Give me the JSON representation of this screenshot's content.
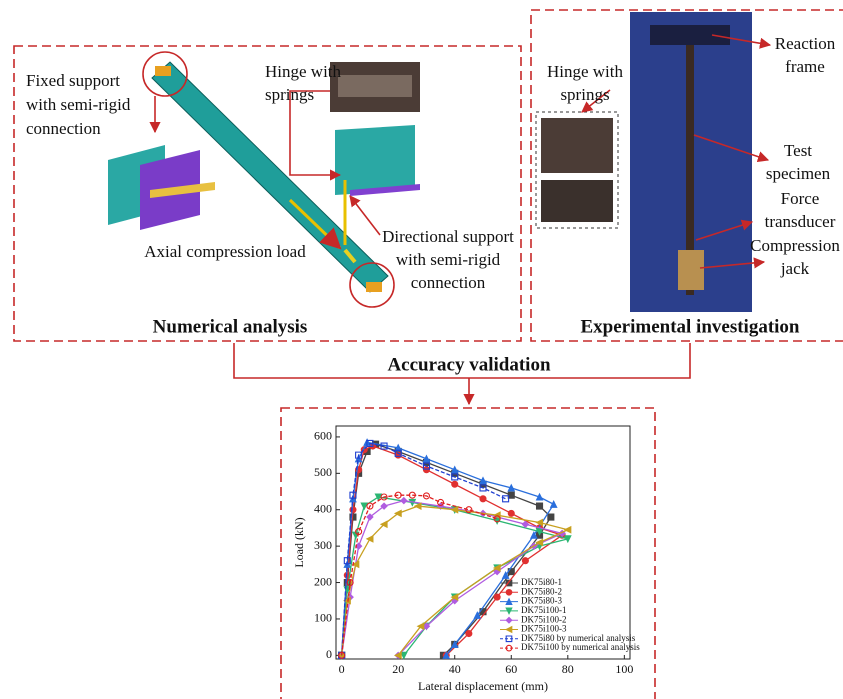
{
  "numerical": {
    "title": "Numerical analysis",
    "fixed_support": [
      "Fixed support",
      "with semi-rigid",
      "connection"
    ],
    "hinge": [
      "Hinge with",
      "springs"
    ],
    "load": "Axial compression load",
    "directional_support": [
      "Directional support",
      "with semi-rigid",
      "connection"
    ]
  },
  "experimental": {
    "title": "Experimental investigation",
    "hinge": [
      "Hinge with",
      "springs"
    ],
    "reaction": [
      "Reaction",
      "frame"
    ],
    "specimen": [
      "Test",
      "specimen"
    ],
    "transducer": [
      "Force",
      "transducer"
    ],
    "jack": [
      "Compression",
      "jack"
    ]
  },
  "validation": "Accuracy validation",
  "validation_chart": {
    "type": "line",
    "x_label": "Lateral displacement (mm)",
    "y_label": "Load (kN)",
    "xlim": [
      -2,
      102
    ],
    "ylim": [
      -10,
      630
    ],
    "xticks": [
      0,
      20,
      40,
      60,
      80,
      100
    ],
    "yticks": [
      0,
      100,
      200,
      300,
      400,
      500,
      600
    ],
    "series": [
      {
        "name": "DK75i80-1",
        "color": "#444444",
        "marker": "square",
        "filled": true,
        "x": [
          0,
          2,
          4,
          6,
          9,
          12,
          20,
          30,
          40,
          50,
          60,
          70,
          74,
          70,
          60,
          50,
          40,
          36
        ],
        "values": [
          0,
          200,
          380,
          500,
          560,
          580,
          560,
          530,
          500,
          470,
          440,
          410,
          380,
          330,
          230,
          120,
          30,
          0
        ]
      },
      {
        "name": "DK75i80-2",
        "color": "#e03030",
        "marker": "circle",
        "filled": true,
        "x": [
          0,
          2,
          4,
          6,
          8,
          11,
          20,
          30,
          40,
          50,
          60,
          70,
          78,
          65,
          55,
          45,
          37
        ],
        "values": [
          0,
          220,
          400,
          510,
          565,
          575,
          550,
          510,
          470,
          430,
          390,
          350,
          330,
          260,
          160,
          60,
          0
        ]
      },
      {
        "name": "DK75i80-3",
        "color": "#2a6fdc",
        "marker": "triangle",
        "filled": true,
        "x": [
          0,
          2,
          4,
          6,
          9,
          20,
          30,
          40,
          50,
          60,
          70,
          75,
          68,
          58,
          48,
          40,
          37
        ],
        "values": [
          0,
          250,
          430,
          540,
          585,
          570,
          540,
          510,
          480,
          460,
          435,
          415,
          330,
          220,
          110,
          30,
          0
        ]
      },
      {
        "name": "DK75i100-1",
        "color": "#2bb673",
        "marker": "triangle-down",
        "filled": true,
        "x": [
          0,
          2,
          5,
          8,
          13,
          25,
          40,
          55,
          70,
          80,
          70,
          55,
          40,
          30,
          22
        ],
        "values": [
          0,
          180,
          330,
          410,
          435,
          420,
          400,
          370,
          340,
          320,
          300,
          240,
          160,
          80,
          0
        ]
      },
      {
        "name": "DK75i100-2",
        "color": "#b05ce0",
        "marker": "diamond",
        "filled": true,
        "x": [
          0,
          3,
          6,
          10,
          15,
          22,
          35,
          50,
          65,
          78,
          68,
          55,
          40,
          30,
          20
        ],
        "values": [
          0,
          160,
          300,
          380,
          410,
          425,
          410,
          390,
          360,
          335,
          300,
          230,
          150,
          80,
          0
        ]
      },
      {
        "name": "DK75i100-3",
        "color": "#c8a020",
        "marker": "triangle-left",
        "filled": true,
        "x": [
          0,
          2,
          5,
          10,
          15,
          20,
          27,
          40,
          55,
          70,
          80,
          70,
          55,
          40,
          28,
          20
        ],
        "values": [
          0,
          150,
          250,
          320,
          360,
          390,
          410,
          400,
          385,
          365,
          345,
          310,
          240,
          160,
          80,
          0
        ]
      },
      {
        "name": "DK75i80 by numerical analysis",
        "color": "#1f3fd0",
        "marker": "square",
        "filled": false,
        "x": [
          0,
          2,
          4,
          6,
          10,
          15,
          20,
          30,
          40,
          50,
          58
        ],
        "values": [
          0,
          260,
          440,
          550,
          582,
          575,
          555,
          520,
          490,
          460,
          430
        ]
      },
      {
        "name": "DK75i100 by numerical analysis",
        "color": "#e02020",
        "marker": "circle",
        "filled": false,
        "x": [
          0,
          3,
          6,
          10,
          15,
          20,
          25,
          30,
          35,
          45,
          55
        ],
        "values": [
          0,
          200,
          340,
          410,
          435,
          440,
          440,
          438,
          420,
          400,
          375
        ]
      }
    ]
  }
}
